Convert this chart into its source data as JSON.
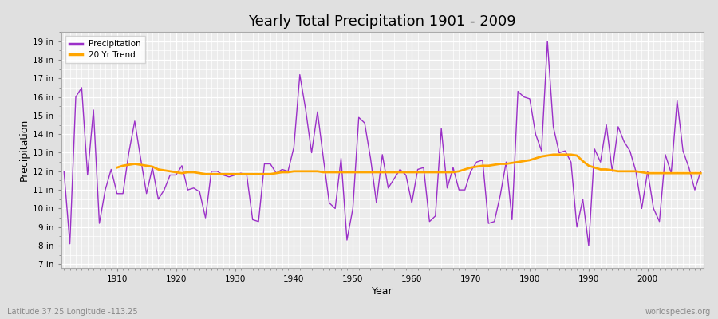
{
  "title": "Yearly Total Precipitation 1901 - 2009",
  "xlabel": "Year",
  "ylabel": "Precipitation",
  "bottom_left": "Latitude 37.25 Longitude -113.25",
  "bottom_right": "worldspecies.org",
  "years": [
    1901,
    1902,
    1903,
    1904,
    1905,
    1906,
    1907,
    1908,
    1909,
    1910,
    1911,
    1912,
    1913,
    1914,
    1915,
    1916,
    1917,
    1918,
    1919,
    1920,
    1921,
    1922,
    1923,
    1924,
    1925,
    1926,
    1927,
    1928,
    1929,
    1930,
    1931,
    1932,
    1933,
    1934,
    1935,
    1936,
    1937,
    1938,
    1939,
    1940,
    1941,
    1942,
    1943,
    1944,
    1945,
    1946,
    1947,
    1948,
    1949,
    1950,
    1951,
    1952,
    1953,
    1954,
    1955,
    1956,
    1957,
    1958,
    1959,
    1960,
    1961,
    1962,
    1963,
    1964,
    1965,
    1966,
    1967,
    1968,
    1969,
    1970,
    1971,
    1972,
    1973,
    1974,
    1975,
    1976,
    1977,
    1978,
    1979,
    1980,
    1981,
    1982,
    1983,
    1984,
    1985,
    1986,
    1987,
    1988,
    1989,
    1990,
    1991,
    1992,
    1993,
    1994,
    1995,
    1996,
    1997,
    1998,
    1999,
    2000,
    2001,
    2002,
    2003,
    2004,
    2005,
    2006,
    2007,
    2008,
    2009
  ],
  "precipitation": [
    12.0,
    8.1,
    16.0,
    16.5,
    11.8,
    15.3,
    9.2,
    11.0,
    12.1,
    10.8,
    10.8,
    13.0,
    14.7,
    12.7,
    10.8,
    12.2,
    10.5,
    11.0,
    11.8,
    11.8,
    12.3,
    11.0,
    11.1,
    10.9,
    9.5,
    12.0,
    12.0,
    11.8,
    11.7,
    11.8,
    11.9,
    11.8,
    9.4,
    9.3,
    12.4,
    12.4,
    11.9,
    12.1,
    12.0,
    13.3,
    17.2,
    15.3,
    13.0,
    15.2,
    12.7,
    10.3,
    10.0,
    12.7,
    8.3,
    10.0,
    14.9,
    14.6,
    12.7,
    10.3,
    12.9,
    11.1,
    11.6,
    12.1,
    11.8,
    10.3,
    12.1,
    12.2,
    9.3,
    9.6,
    14.3,
    11.1,
    12.2,
    11.0,
    11.0,
    12.0,
    12.5,
    12.6,
    9.2,
    9.3,
    10.7,
    12.5,
    9.4,
    16.3,
    16.0,
    15.9,
    14.0,
    13.1,
    19.0,
    14.4,
    13.0,
    13.1,
    12.5,
    9.0,
    10.5,
    8.0,
    13.2,
    12.5,
    14.5,
    12.0,
    14.4,
    13.6,
    13.1,
    12.0,
    10.0,
    12.0,
    10.0,
    9.3,
    12.9,
    11.9,
    15.8,
    13.1,
    12.2,
    11.0,
    12.0
  ],
  "trend": [
    null,
    null,
    null,
    null,
    null,
    null,
    null,
    null,
    null,
    12.2,
    12.3,
    12.35,
    12.4,
    12.35,
    12.3,
    12.25,
    12.1,
    12.05,
    12.0,
    11.95,
    11.9,
    11.95,
    11.95,
    11.9,
    11.85,
    11.85,
    11.85,
    11.85,
    11.85,
    11.85,
    11.85,
    11.85,
    11.85,
    11.85,
    11.85,
    11.85,
    11.9,
    11.95,
    11.95,
    12.0,
    12.0,
    12.0,
    12.0,
    12.0,
    11.95,
    11.95,
    11.95,
    11.95,
    11.95,
    11.95,
    11.95,
    11.95,
    11.95,
    11.95,
    11.95,
    11.95,
    11.95,
    11.95,
    11.95,
    11.95,
    11.95,
    11.95,
    11.95,
    11.95,
    11.95,
    11.95,
    11.95,
    12.0,
    12.1,
    12.2,
    12.25,
    12.3,
    12.3,
    12.35,
    12.4,
    12.4,
    12.45,
    12.5,
    12.55,
    12.6,
    12.7,
    12.8,
    12.85,
    12.9,
    12.9,
    12.9,
    12.9,
    12.85,
    12.55,
    12.3,
    12.2,
    12.1,
    12.1,
    12.05,
    12.0,
    12.0,
    12.0,
    12.0,
    11.95,
    11.9,
    11.9,
    11.9,
    11.9,
    11.9,
    11.9,
    11.9,
    11.9,
    11.9,
    11.9
  ],
  "precip_color": "#9b30c8",
  "trend_color": "#ffa500",
  "background_color": "#e0e0e0",
  "plot_bg_color": "#ececec",
  "grid_color": "#ffffff",
  "ytick_labels": [
    "7 in",
    "8 in",
    "9 in",
    "10 in",
    "11 in",
    "12 in",
    "13 in",
    "14 in",
    "15 in",
    "16 in",
    "17 in",
    "18 in",
    "19 in"
  ],
  "ytick_values": [
    7,
    8,
    9,
    10,
    11,
    12,
    13,
    14,
    15,
    16,
    17,
    18,
    19
  ],
  "ylim": [
    6.8,
    19.5
  ],
  "xlim": [
    1900.5,
    2009.5
  ],
  "xticks": [
    1910,
    1920,
    1930,
    1940,
    1950,
    1960,
    1970,
    1980,
    1990,
    2000
  ]
}
